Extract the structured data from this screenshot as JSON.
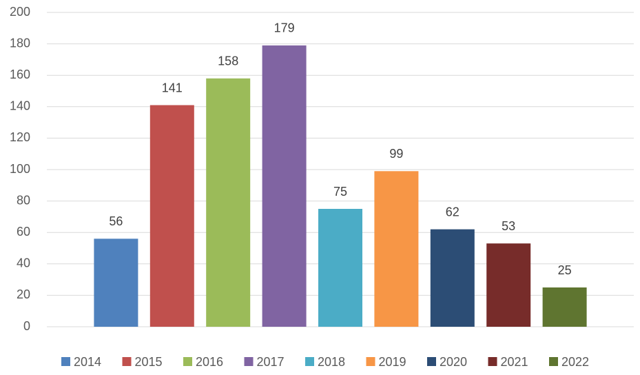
{
  "chart_data": {
    "type": "bar",
    "categories": [
      null
    ],
    "series": [
      {
        "name": "2014",
        "color": "#4f81bd",
        "values": [
          56
        ]
      },
      {
        "name": "2015",
        "color": "#c0504d",
        "values": [
          141
        ]
      },
      {
        "name": "2016",
        "color": "#9bbb59",
        "values": [
          158
        ]
      },
      {
        "name": "2017",
        "color": "#8064a2",
        "values": [
          179
        ]
      },
      {
        "name": "2018",
        "color": "#4bacc6",
        "values": [
          75
        ]
      },
      {
        "name": "2019",
        "color": "#f79646",
        "values": [
          99
        ]
      },
      {
        "name": "2020",
        "color": "#2c4d75",
        "values": [
          62
        ]
      },
      {
        "name": "2021",
        "color": "#772c2a",
        "values": [
          53
        ]
      },
      {
        "name": "2022",
        "color": "#5f7530",
        "values": [
          25
        ]
      }
    ],
    "ylim": [
      0,
      200
    ],
    "yticks": [
      0,
      20,
      40,
      60,
      80,
      100,
      120,
      140,
      160,
      180,
      200
    ],
    "grid": true,
    "legend": "bottom"
  }
}
